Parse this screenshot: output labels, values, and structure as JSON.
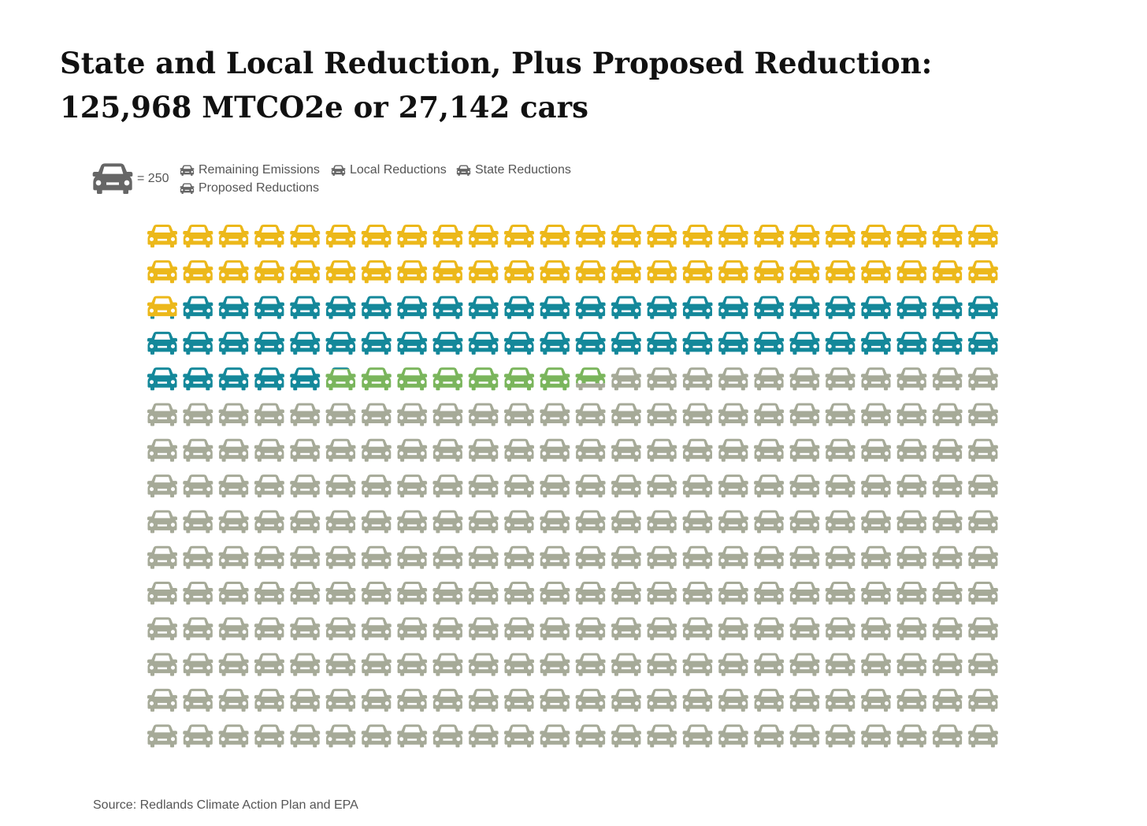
{
  "title": {
    "line1": "State and Local Reduction, Plus Proposed Reduction:",
    "line2": "125,968 MTCO2e or 27,142 cars"
  },
  "legend": {
    "unit_icon": "car-icon",
    "unit_label": "= 250",
    "items": [
      {
        "label": "Remaining Emissions",
        "color": "#a6aa98",
        "icon": "car-icon"
      },
      {
        "label": "Local Reductions",
        "color": "#7ab55c",
        "icon": "car-icon"
      },
      {
        "label": "State Reductions",
        "color": "#14889a",
        "icon": "car-icon"
      },
      {
        "label": "Proposed Reductions",
        "color": "#ecb81a",
        "icon": "car-icon"
      }
    ]
  },
  "colors": {
    "remaining": "#a6aa98",
    "local": "#7ab55c",
    "state": "#14889a",
    "proposed": "#ecb81a",
    "key_icon": "#666666"
  },
  "chart_data": {
    "type": "waffle",
    "units_per_icon": 250,
    "columns": 24,
    "rows": 15,
    "categories": [
      "Proposed Reductions",
      "State Reductions",
      "Local Reductions",
      "Remaining Emissions"
    ],
    "icon_counts": [
      48.9,
      52.2,
      7.6,
      251.3
    ]
  },
  "source": "Source: Redlands Climate Action Plan and EPA"
}
